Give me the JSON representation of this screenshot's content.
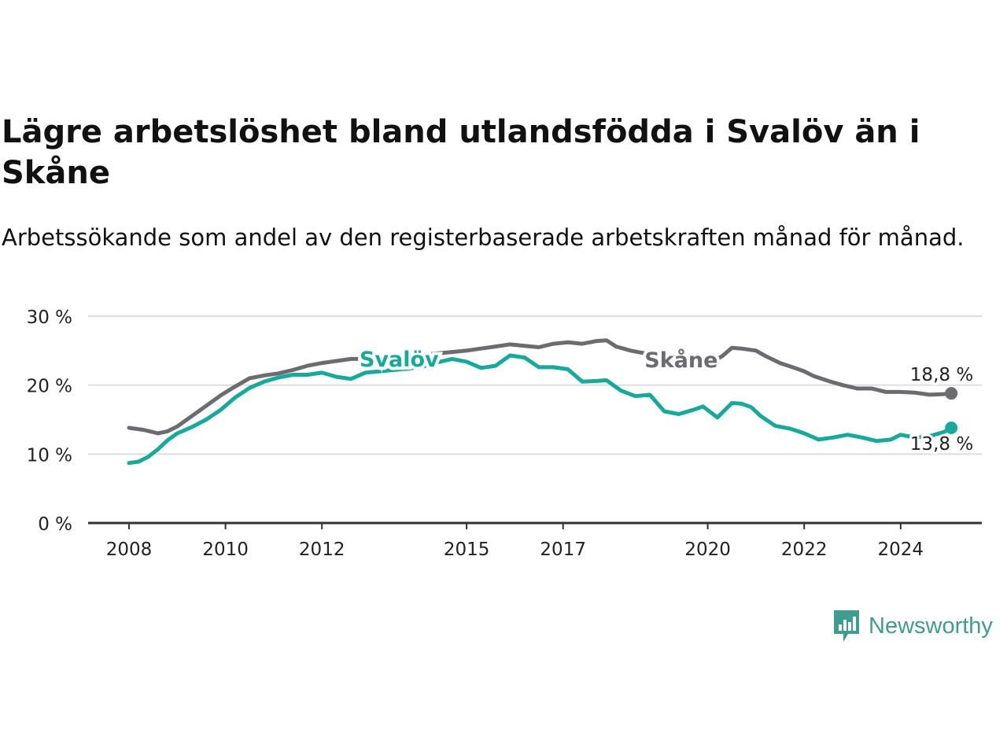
{
  "title": "Lägre arbetslöshet bland utlandsfödda i Svalöv än i Skåne",
  "subtitle": "Arbetssökande som andel av den registerbaserade arbetskraften månad för månad.",
  "brand": {
    "name": "Newsworthy",
    "color": "#3f9d8f",
    "icon": "newsworthy-logo-icon"
  },
  "chart_data": {
    "type": "line",
    "ylim": [
      0,
      30
    ],
    "y_ticks": [
      0,
      10,
      20,
      30
    ],
    "y_tick_labels": [
      "0 %",
      "10 %",
      "20 %",
      "30 %"
    ],
    "xlim": [
      2008,
      2025.6
    ],
    "x_ticks": [
      2008,
      2010,
      2012,
      2015,
      2017,
      2020,
      2022,
      2024
    ],
    "x_tick_labels": [
      "2008",
      "2010",
      "2012",
      "2015",
      "2017",
      "2020",
      "2022",
      "2024"
    ],
    "grid": true,
    "series": [
      {
        "name": "Skåne",
        "color": "#6b6b70",
        "end_label": "18,8 %",
        "points": [
          [
            2008.0,
            13.8
          ],
          [
            2008.3,
            13.5
          ],
          [
            2008.6,
            13.0
          ],
          [
            2008.8,
            13.3
          ],
          [
            2009.0,
            14.0
          ],
          [
            2009.3,
            15.5
          ],
          [
            2009.6,
            17.0
          ],
          [
            2009.9,
            18.5
          ],
          [
            2010.2,
            19.8
          ],
          [
            2010.5,
            21.0
          ],
          [
            2010.8,
            21.4
          ],
          [
            2011.1,
            21.7
          ],
          [
            2011.4,
            22.2
          ],
          [
            2011.7,
            22.8
          ],
          [
            2012.0,
            23.2
          ],
          [
            2012.3,
            23.5
          ],
          [
            2012.6,
            23.8
          ],
          [
            2012.9,
            23.8
          ],
          [
            2013.2,
            24.0
          ],
          [
            2013.5,
            24.1
          ],
          [
            2013.8,
            24.2
          ],
          [
            2014.1,
            24.4
          ],
          [
            2014.4,
            24.6
          ],
          [
            2014.7,
            24.8
          ],
          [
            2015.0,
            25.0
          ],
          [
            2015.3,
            25.3
          ],
          [
            2015.6,
            25.6
          ],
          [
            2015.9,
            25.9
          ],
          [
            2016.2,
            25.7
          ],
          [
            2016.5,
            25.5
          ],
          [
            2016.8,
            26.0
          ],
          [
            2017.1,
            26.2
          ],
          [
            2017.4,
            26.0
          ],
          [
            2017.7,
            26.4
          ],
          [
            2017.9,
            26.5
          ],
          [
            2018.1,
            25.6
          ],
          [
            2018.4,
            25.0
          ],
          [
            2018.7,
            24.6
          ],
          [
            2019.0,
            24.2
          ],
          [
            2019.3,
            24.0
          ],
          [
            2019.6,
            23.8
          ],
          [
            2019.9,
            23.5
          ],
          [
            2020.1,
            23.4
          ],
          [
            2020.3,
            24.2
          ],
          [
            2020.5,
            25.4
          ],
          [
            2020.7,
            25.3
          ],
          [
            2021.0,
            25.0
          ],
          [
            2021.2,
            24.2
          ],
          [
            2021.5,
            23.2
          ],
          [
            2021.8,
            22.5
          ],
          [
            2022.0,
            22.0
          ],
          [
            2022.2,
            21.3
          ],
          [
            2022.5,
            20.6
          ],
          [
            2022.8,
            20.0
          ],
          [
            2023.1,
            19.5
          ],
          [
            2023.4,
            19.5
          ],
          [
            2023.7,
            19.0
          ],
          [
            2024.0,
            19.0
          ],
          [
            2024.3,
            18.9
          ],
          [
            2024.6,
            18.6
          ],
          [
            2024.9,
            18.7
          ],
          [
            2025.05,
            18.8
          ]
        ]
      },
      {
        "name": "Svalöv",
        "color": "#17a99a",
        "end_label": "13,8 %",
        "points": [
          [
            2008.0,
            8.7
          ],
          [
            2008.2,
            8.9
          ],
          [
            2008.4,
            9.6
          ],
          [
            2008.6,
            10.7
          ],
          [
            2008.8,
            12.0
          ],
          [
            2009.0,
            13.0
          ],
          [
            2009.3,
            13.9
          ],
          [
            2009.6,
            15.0
          ],
          [
            2009.9,
            16.4
          ],
          [
            2010.2,
            18.2
          ],
          [
            2010.5,
            19.6
          ],
          [
            2010.8,
            20.5
          ],
          [
            2011.1,
            21.1
          ],
          [
            2011.4,
            21.5
          ],
          [
            2011.7,
            21.5
          ],
          [
            2012.0,
            21.8
          ],
          [
            2012.3,
            21.2
          ],
          [
            2012.6,
            20.9
          ],
          [
            2012.9,
            21.8
          ],
          [
            2013.2,
            22.0
          ],
          [
            2013.5,
            22.2
          ],
          [
            2013.8,
            22.4
          ],
          [
            2014.1,
            22.7
          ],
          [
            2014.4,
            23.3
          ],
          [
            2014.7,
            23.8
          ],
          [
            2015.0,
            23.4
          ],
          [
            2015.3,
            22.5
          ],
          [
            2015.6,
            22.8
          ],
          [
            2015.9,
            24.3
          ],
          [
            2016.2,
            24.0
          ],
          [
            2016.5,
            22.6
          ],
          [
            2016.8,
            22.6
          ],
          [
            2017.1,
            22.3
          ],
          [
            2017.4,
            20.5
          ],
          [
            2017.7,
            20.6
          ],
          [
            2017.9,
            20.7
          ],
          [
            2018.2,
            19.2
          ],
          [
            2018.5,
            18.4
          ],
          [
            2018.8,
            18.6
          ],
          [
            2019.1,
            16.2
          ],
          [
            2019.4,
            15.8
          ],
          [
            2019.7,
            16.4
          ],
          [
            2019.9,
            16.9
          ],
          [
            2020.2,
            15.3
          ],
          [
            2020.5,
            17.4
          ],
          [
            2020.7,
            17.3
          ],
          [
            2020.9,
            16.8
          ],
          [
            2021.1,
            15.5
          ],
          [
            2021.4,
            14.1
          ],
          [
            2021.7,
            13.7
          ],
          [
            2022.0,
            13.0
          ],
          [
            2022.3,
            12.1
          ],
          [
            2022.6,
            12.4
          ],
          [
            2022.9,
            12.8
          ],
          [
            2023.2,
            12.4
          ],
          [
            2023.5,
            11.9
          ],
          [
            2023.8,
            12.1
          ],
          [
            2024.0,
            12.8
          ],
          [
            2024.3,
            12.4
          ],
          [
            2024.6,
            12.6
          ],
          [
            2024.9,
            13.2
          ],
          [
            2025.05,
            13.8
          ]
        ]
      }
    ]
  }
}
